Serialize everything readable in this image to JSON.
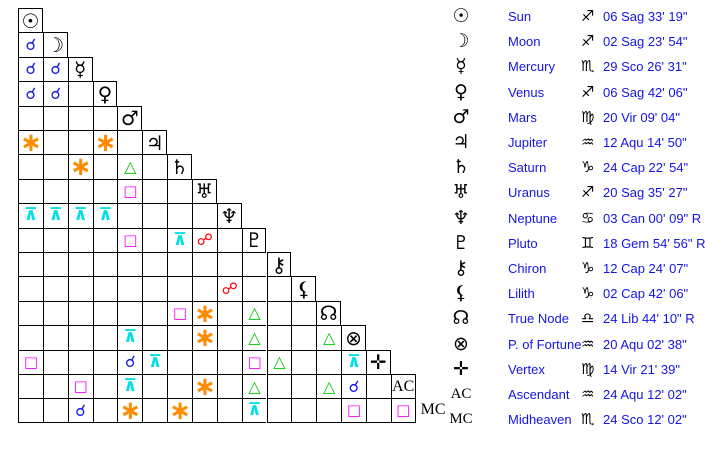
{
  "colors": {
    "legend_text": "#1414e6",
    "conjunction": "#1a1ae0",
    "sextile": "#ff8c00",
    "trine": "#00cc00",
    "square": "#ff00ff",
    "opposition": "#ff0000",
    "quincunx": "#00e0e8",
    "glyphs": "#000000",
    "grid_border": "#000000"
  },
  "aspect_symbols": {
    "conjunction": "☌",
    "sextile": "∗",
    "trine": "△",
    "square": "□",
    "opposition": "☍",
    "quincunx": "⊼"
  },
  "grid": {
    "planet_order": [
      "sun",
      "moon",
      "mercury",
      "venus",
      "mars",
      "jupiter",
      "saturn",
      "uranus",
      "neptune",
      "pluto",
      "chiron",
      "lilith",
      "true-node",
      "part-of-fortune",
      "vertex",
      "ascendant",
      "midheaven"
    ],
    "diagonal_glyphs": [
      "☉",
      "☽",
      "☿",
      "♀",
      "♂",
      "♃",
      "♄",
      "♅",
      "♆",
      "♇",
      "⚷",
      "⚸",
      "☊",
      "⊗",
      "✛",
      "AC",
      "MC"
    ],
    "mc_label": "MC",
    "aspect_cells": [
      {
        "row": 2,
        "col": 1,
        "aspect": "conjunction"
      },
      {
        "row": 3,
        "col": 1,
        "aspect": "conjunction"
      },
      {
        "row": 3,
        "col": 2,
        "aspect": "conjunction"
      },
      {
        "row": 4,
        "col": 1,
        "aspect": "conjunction"
      },
      {
        "row": 4,
        "col": 2,
        "aspect": "conjunction"
      },
      {
        "row": 6,
        "col": 1,
        "aspect": "sextile"
      },
      {
        "row": 6,
        "col": 4,
        "aspect": "sextile"
      },
      {
        "row": 7,
        "col": 3,
        "aspect": "sextile"
      },
      {
        "row": 7,
        "col": 5,
        "aspect": "trine"
      },
      {
        "row": 8,
        "col": 5,
        "aspect": "square"
      },
      {
        "row": 9,
        "col": 1,
        "aspect": "quincunx"
      },
      {
        "row": 9,
        "col": 2,
        "aspect": "quincunx"
      },
      {
        "row": 9,
        "col": 3,
        "aspect": "quincunx"
      },
      {
        "row": 9,
        "col": 4,
        "aspect": "quincunx"
      },
      {
        "row": 10,
        "col": 5,
        "aspect": "square"
      },
      {
        "row": 10,
        "col": 7,
        "aspect": "quincunx"
      },
      {
        "row": 10,
        "col": 8,
        "aspect": "opposition"
      },
      {
        "row": 12,
        "col": 9,
        "aspect": "opposition"
      },
      {
        "row": 13,
        "col": 7,
        "aspect": "square"
      },
      {
        "row": 13,
        "col": 8,
        "aspect": "sextile"
      },
      {
        "row": 13,
        "col": 10,
        "aspect": "trine"
      },
      {
        "row": 14,
        "col": 5,
        "aspect": "quincunx"
      },
      {
        "row": 14,
        "col": 8,
        "aspect": "sextile"
      },
      {
        "row": 14,
        "col": 10,
        "aspect": "trine"
      },
      {
        "row": 14,
        "col": 13,
        "aspect": "trine"
      },
      {
        "row": 15,
        "col": 1,
        "aspect": "square"
      },
      {
        "row": 15,
        "col": 5,
        "aspect": "conjunction"
      },
      {
        "row": 15,
        "col": 6,
        "aspect": "quincunx"
      },
      {
        "row": 15,
        "col": 10,
        "aspect": "square"
      },
      {
        "row": 15,
        "col": 11,
        "aspect": "trine"
      },
      {
        "row": 15,
        "col": 14,
        "aspect": "quincunx"
      },
      {
        "row": 16,
        "col": 3,
        "aspect": "square"
      },
      {
        "row": 16,
        "col": 5,
        "aspect": "quincunx"
      },
      {
        "row": 16,
        "col": 8,
        "aspect": "sextile"
      },
      {
        "row": 16,
        "col": 10,
        "aspect": "trine"
      },
      {
        "row": 16,
        "col": 13,
        "aspect": "trine"
      },
      {
        "row": 16,
        "col": 14,
        "aspect": "conjunction"
      },
      {
        "row": 17,
        "col": 3,
        "aspect": "conjunction"
      },
      {
        "row": 17,
        "col": 5,
        "aspect": "sextile"
      },
      {
        "row": 17,
        "col": 7,
        "aspect": "sextile"
      },
      {
        "row": 17,
        "col": 10,
        "aspect": "quincunx"
      },
      {
        "row": 17,
        "col": 14,
        "aspect": "square"
      },
      {
        "row": 17,
        "col": 16,
        "aspect": "square"
      }
    ]
  },
  "legend": {
    "rows": [
      {
        "id": "sun",
        "glyph": "☉",
        "name": "Sun",
        "sign": "♐",
        "position": "06 Sag 33' 19\""
      },
      {
        "id": "moon",
        "glyph": "☽",
        "name": "Moon",
        "sign": "♐",
        "position": "02 Sag 23' 54\""
      },
      {
        "id": "mercury",
        "glyph": "☿",
        "name": "Mercury",
        "sign": "♏",
        "position": "29 Sco 26' 31\""
      },
      {
        "id": "venus",
        "glyph": "♀",
        "name": "Venus",
        "sign": "♐",
        "position": "06 Sag 42' 06\""
      },
      {
        "id": "mars",
        "glyph": "♂",
        "name": "Mars",
        "sign": "♍",
        "position": "20 Vir 09' 04\""
      },
      {
        "id": "jupiter",
        "glyph": "♃",
        "name": "Jupiter",
        "sign": "♒",
        "position": "12 Aqu 14' 50\""
      },
      {
        "id": "saturn",
        "glyph": "♄",
        "name": "Saturn",
        "sign": "♑",
        "position": "24 Cap 22' 54\""
      },
      {
        "id": "uranus",
        "glyph": "♅",
        "name": "Uranus",
        "sign": "♐",
        "position": "20 Sag 35' 27\""
      },
      {
        "id": "neptune",
        "glyph": "♆",
        "name": "Neptune",
        "sign": "♋",
        "position": "03 Can 00' 09\" R"
      },
      {
        "id": "pluto",
        "glyph": "♇",
        "name": "Pluto",
        "sign": "♊",
        "position": "18 Gem 54' 56\" R"
      },
      {
        "id": "chiron",
        "glyph": "⚷",
        "name": "Chiron",
        "sign": "♑",
        "position": "12 Cap 24' 07\""
      },
      {
        "id": "lilith",
        "glyph": "⚸",
        "name": "Lilith",
        "sign": "♑",
        "position": "02 Cap 42' 06\""
      },
      {
        "id": "true-node",
        "glyph": "☊",
        "name": "True Node",
        "sign": "♎",
        "position": "24 Lib 44' 10\" R"
      },
      {
        "id": "part-of-fortune",
        "glyph": "⊗",
        "name": "P. of Fortune",
        "sign": "♒",
        "position": "20 Aqu 02' 38\""
      },
      {
        "id": "vertex",
        "glyph": "✛",
        "name": "Vertex",
        "sign": "♍",
        "position": "14 Vir 21' 39\""
      },
      {
        "id": "ascendant",
        "glyph": "AC",
        "name": "Ascendant",
        "sign": "♒",
        "position": "24 Aqu 12' 02\""
      },
      {
        "id": "midheaven",
        "glyph": "MC",
        "name": "Midheaven",
        "sign": "♏",
        "position": "24 Sco 12' 02\""
      }
    ]
  }
}
